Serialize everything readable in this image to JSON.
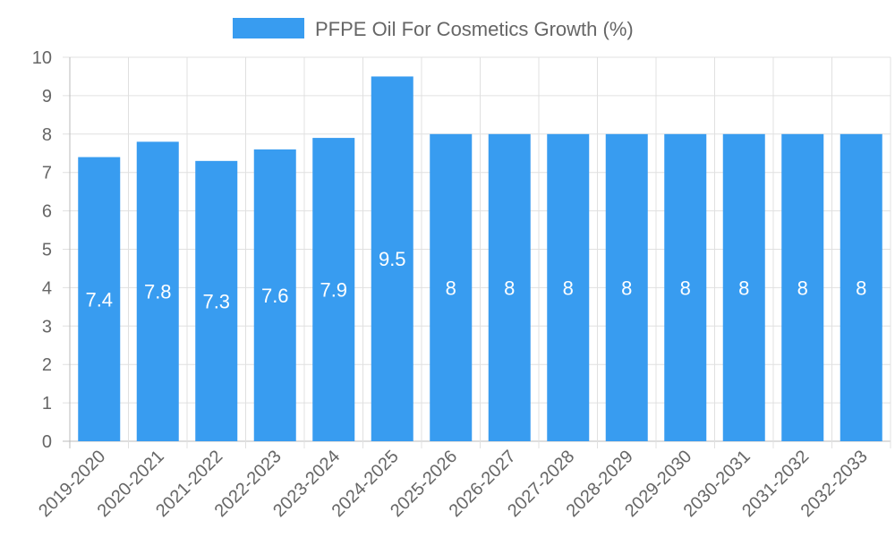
{
  "chart_data": {
    "type": "bar",
    "title": "",
    "legend": {
      "label": "PFPE Oil For Cosmetics Growth (%)",
      "placement": "top-center"
    },
    "categories": [
      "2019-2020",
      "2020-2021",
      "2021-2022",
      "2022-2023",
      "2023-2024",
      "2024-2025",
      "2025-2026",
      "2026-2027",
      "2027-2028",
      "2028-2029",
      "2029-2030",
      "2030-2031",
      "2031-2032",
      "2032-2033"
    ],
    "values": [
      7.4,
      7.8,
      7.3,
      7.6,
      7.9,
      9.5,
      8,
      8,
      8,
      8,
      8,
      8,
      8,
      8
    ],
    "xlabel": "",
    "ylabel": "",
    "ylim": [
      0,
      10
    ],
    "yticks": [
      0,
      1,
      2,
      3,
      4,
      5,
      6,
      7,
      8,
      9,
      10
    ],
    "grid": true,
    "colors": {
      "bar": "#389cf0",
      "grid": "#e0e0e0",
      "axis": "#bbbbbb",
      "text": "#666666"
    }
  }
}
